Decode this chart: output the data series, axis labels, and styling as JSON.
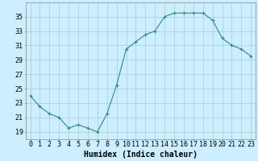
{
  "x": [
    0,
    1,
    2,
    3,
    4,
    5,
    6,
    7,
    8,
    9,
    10,
    11,
    12,
    13,
    14,
    15,
    16,
    17,
    18,
    19,
    20,
    21,
    22,
    23
  ],
  "y": [
    24.0,
    22.5,
    21.5,
    21.0,
    19.5,
    20.0,
    19.5,
    19.0,
    21.5,
    25.5,
    30.5,
    31.5,
    32.5,
    33.0,
    35.0,
    35.5,
    35.5,
    35.5,
    35.5,
    34.5,
    32.0,
    31.0,
    30.5,
    29.5
  ],
  "line_color": "#2e8b7a",
  "marker": "+",
  "marker_size": 3,
  "marker_lw": 0.8,
  "line_width": 0.8,
  "bg_color": "#cceeff",
  "grid_color": "#aacccc",
  "xlabel": "Humidex (Indice chaleur)",
  "xlim": [
    -0.5,
    23.5
  ],
  "ylim": [
    18,
    37
  ],
  "yticks": [
    19,
    21,
    23,
    25,
    27,
    29,
    31,
    33,
    35
  ],
  "xticks": [
    0,
    1,
    2,
    3,
    4,
    5,
    6,
    7,
    8,
    9,
    10,
    11,
    12,
    13,
    14,
    15,
    16,
    17,
    18,
    19,
    20,
    21,
    22,
    23
  ],
  "tick_fontsize": 6,
  "label_fontsize": 7
}
